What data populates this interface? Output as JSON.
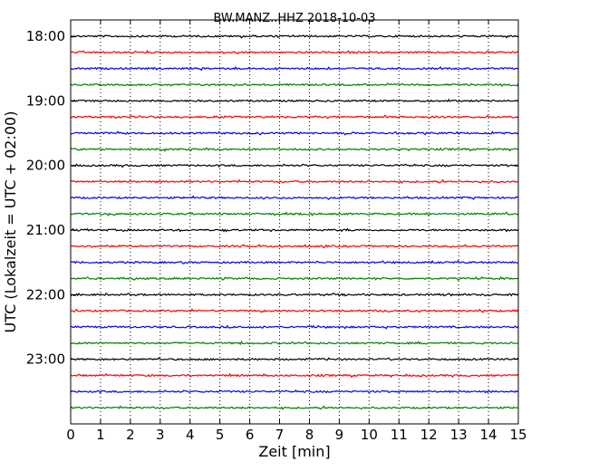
{
  "chart_data": {
    "type": "line",
    "title": "BW.MANZ..HHZ 2018-10-03",
    "xlabel": "Zeit  [min]",
    "ylabel": "UTC (Lokalzeit = UTC + 02:00)",
    "xlim": [
      0,
      15
    ],
    "x_ticks": [
      "0",
      "1",
      "2",
      "3",
      "4",
      "5",
      "6",
      "7",
      "8",
      "9",
      "10",
      "11",
      "12",
      "13",
      "14",
      "15"
    ],
    "y_tick_labels": [
      "18:00",
      "19:00",
      "20:00",
      "21:00",
      "22:00",
      "23:00"
    ],
    "y_start_hour": 18,
    "y_end_hour": 24,
    "trace_interval_minutes": 15,
    "trace_colors": [
      "#000000",
      "#ff0000",
      "#0000ff",
      "#008000"
    ],
    "series": [
      {
        "start": "18:00",
        "color": "#000000"
      },
      {
        "start": "18:15",
        "color": "#ff0000"
      },
      {
        "start": "18:30",
        "color": "#0000ff"
      },
      {
        "start": "18:45",
        "color": "#008000"
      },
      {
        "start": "19:00",
        "color": "#000000"
      },
      {
        "start": "19:15",
        "color": "#ff0000"
      },
      {
        "start": "19:30",
        "color": "#0000ff"
      },
      {
        "start": "19:45",
        "color": "#008000"
      },
      {
        "start": "20:00",
        "color": "#000000"
      },
      {
        "start": "20:15",
        "color": "#ff0000"
      },
      {
        "start": "20:30",
        "color": "#0000ff"
      },
      {
        "start": "20:45",
        "color": "#008000"
      },
      {
        "start": "21:00",
        "color": "#000000"
      },
      {
        "start": "21:15",
        "color": "#ff0000"
      },
      {
        "start": "21:30",
        "color": "#0000ff"
      },
      {
        "start": "21:45",
        "color": "#008000"
      },
      {
        "start": "22:00",
        "color": "#000000"
      },
      {
        "start": "22:15",
        "color": "#ff0000"
      },
      {
        "start": "22:30",
        "color": "#0000ff"
      },
      {
        "start": "22:45",
        "color": "#008000"
      },
      {
        "start": "23:00",
        "color": "#000000"
      },
      {
        "start": "23:15",
        "color": "#ff0000"
      },
      {
        "start": "23:30",
        "color": "#0000ff"
      },
      {
        "start": "23:45",
        "color": "#008000"
      }
    ],
    "grid": "x-dotted",
    "legend": "none"
  }
}
